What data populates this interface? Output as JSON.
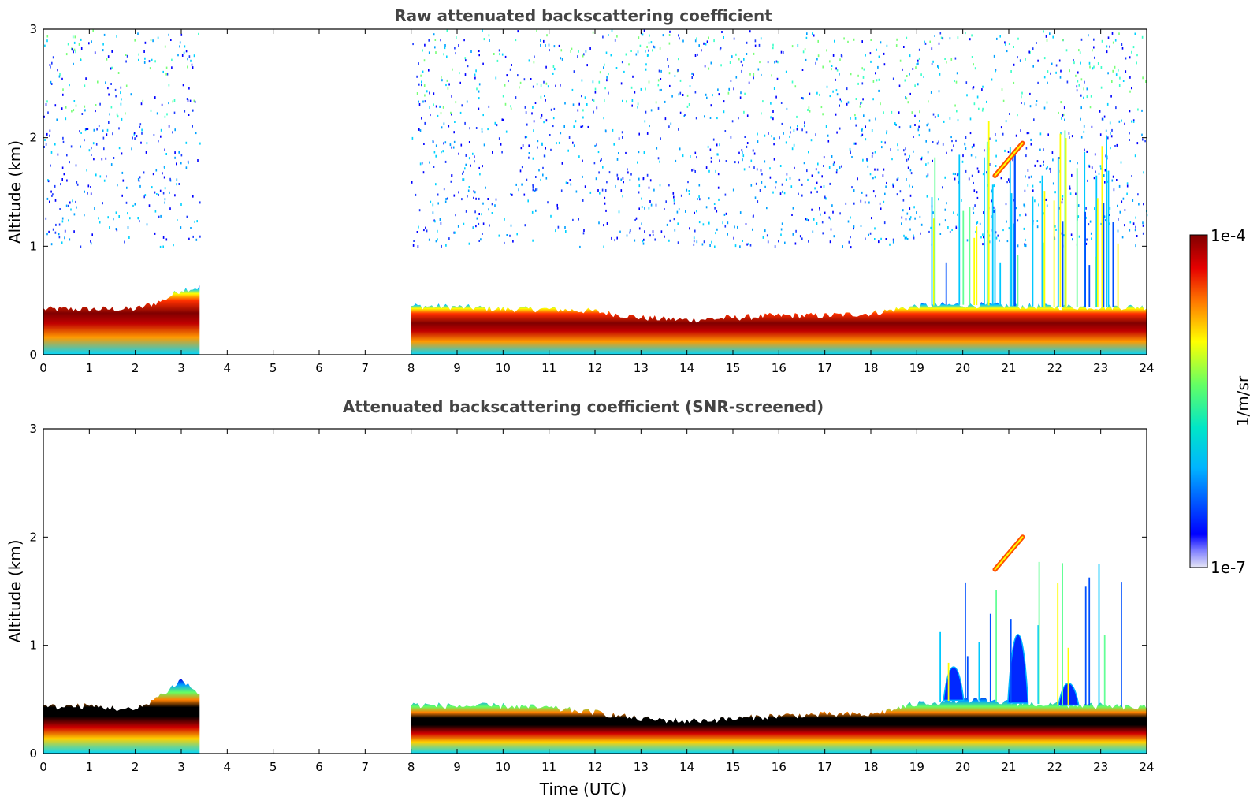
{
  "chart_data": [
    {
      "type": "heatmap",
      "title": "Raw attenuated backscattering coefficient",
      "xlabel": "",
      "ylabel": "Altitude (km)",
      "xlim": [
        0,
        24
      ],
      "ylim": [
        0,
        3
      ],
      "xticks": [
        "0",
        "1",
        "2",
        "3",
        "4",
        "5",
        "6",
        "7",
        "8",
        "9",
        "10",
        "11",
        "12",
        "13",
        "14",
        "15",
        "16",
        "17",
        "18",
        "19",
        "20",
        "21",
        "22",
        "23",
        "24"
      ],
      "yticks": [
        "0",
        "1",
        "2",
        "3"
      ],
      "no_data_intervals": [
        [
          3.4,
          8.0
        ]
      ],
      "features": {
        "boundary_layer_top_km": [
          [
            0,
            0.42
          ],
          [
            1,
            0.42
          ],
          [
            2,
            0.42
          ],
          [
            2.6,
            0.5
          ],
          [
            3.0,
            0.6
          ],
          [
            3.4,
            0.62
          ],
          [
            8.0,
            0.45
          ],
          [
            9,
            0.44
          ],
          [
            10,
            0.42
          ],
          [
            11,
            0.42
          ],
          [
            12,
            0.4
          ],
          [
            13,
            0.34
          ],
          [
            14,
            0.32
          ],
          [
            15,
            0.34
          ],
          [
            16,
            0.36
          ],
          [
            17,
            0.36
          ],
          [
            18,
            0.38
          ],
          [
            19,
            0.45
          ],
          [
            20,
            0.46
          ],
          [
            21,
            0.45
          ],
          [
            22,
            0.44
          ],
          [
            23,
            0.44
          ],
          [
            24,
            0.44
          ]
        ],
        "elevated_layer_km": [
          [
            20.7,
            1.65
          ],
          [
            21.0,
            1.8
          ],
          [
            21.3,
            1.95
          ]
        ],
        "noise_floor_km": 1.0
      }
    },
    {
      "type": "heatmap",
      "title": "Attenuated backscattering coefficient (SNR-screened)",
      "xlabel": "Time (UTC)",
      "ylabel": "Altitude (km)",
      "xlim": [
        0,
        24
      ],
      "ylim": [
        0,
        3
      ],
      "xticks": [
        "0",
        "1",
        "2",
        "3",
        "4",
        "5",
        "6",
        "7",
        "8",
        "9",
        "10",
        "11",
        "12",
        "13",
        "14",
        "15",
        "16",
        "17",
        "18",
        "19",
        "20",
        "21",
        "22",
        "23",
        "24"
      ],
      "yticks": [
        "0",
        "1",
        "2",
        "3"
      ],
      "no_data_intervals": [
        [
          3.4,
          8.0
        ]
      ],
      "features": {
        "boundary_layer_top_km": [
          [
            0,
            0.43
          ],
          [
            1,
            0.44
          ],
          [
            2,
            0.4
          ],
          [
            2.6,
            0.55
          ],
          [
            3.0,
            0.68
          ],
          [
            3.4,
            0.55
          ],
          [
            8.0,
            0.45
          ],
          [
            9,
            0.44
          ],
          [
            10,
            0.44
          ],
          [
            11,
            0.42
          ],
          [
            12,
            0.38
          ],
          [
            13,
            0.32
          ],
          [
            14,
            0.3
          ],
          [
            15,
            0.32
          ],
          [
            16,
            0.35
          ],
          [
            17,
            0.36
          ],
          [
            18,
            0.36
          ],
          [
            19,
            0.46
          ],
          [
            20,
            0.5
          ],
          [
            21,
            0.47
          ],
          [
            22,
            0.45
          ],
          [
            23,
            0.44
          ],
          [
            24,
            0.42
          ]
        ],
        "plume_km": [
          [
            19.8,
            0.8
          ],
          [
            21.2,
            1.1
          ],
          [
            22.3,
            0.65
          ]
        ],
        "elevated_layer_km": [
          [
            20.7,
            1.7
          ],
          [
            21.0,
            1.85
          ],
          [
            21.3,
            2.0
          ]
        ]
      }
    }
  ],
  "colorbar": {
    "label": "1/m/sr",
    "max_label": "1e-4",
    "min_label": "1e-7",
    "scale": "log",
    "range": [
      1e-07,
      0.0001
    ],
    "colormap": [
      "#e6e6f5",
      "#0000ff",
      "#00c8ff",
      "#64ff96",
      "#ffff00",
      "#ff6400",
      "#e60000",
      "#800000"
    ]
  }
}
